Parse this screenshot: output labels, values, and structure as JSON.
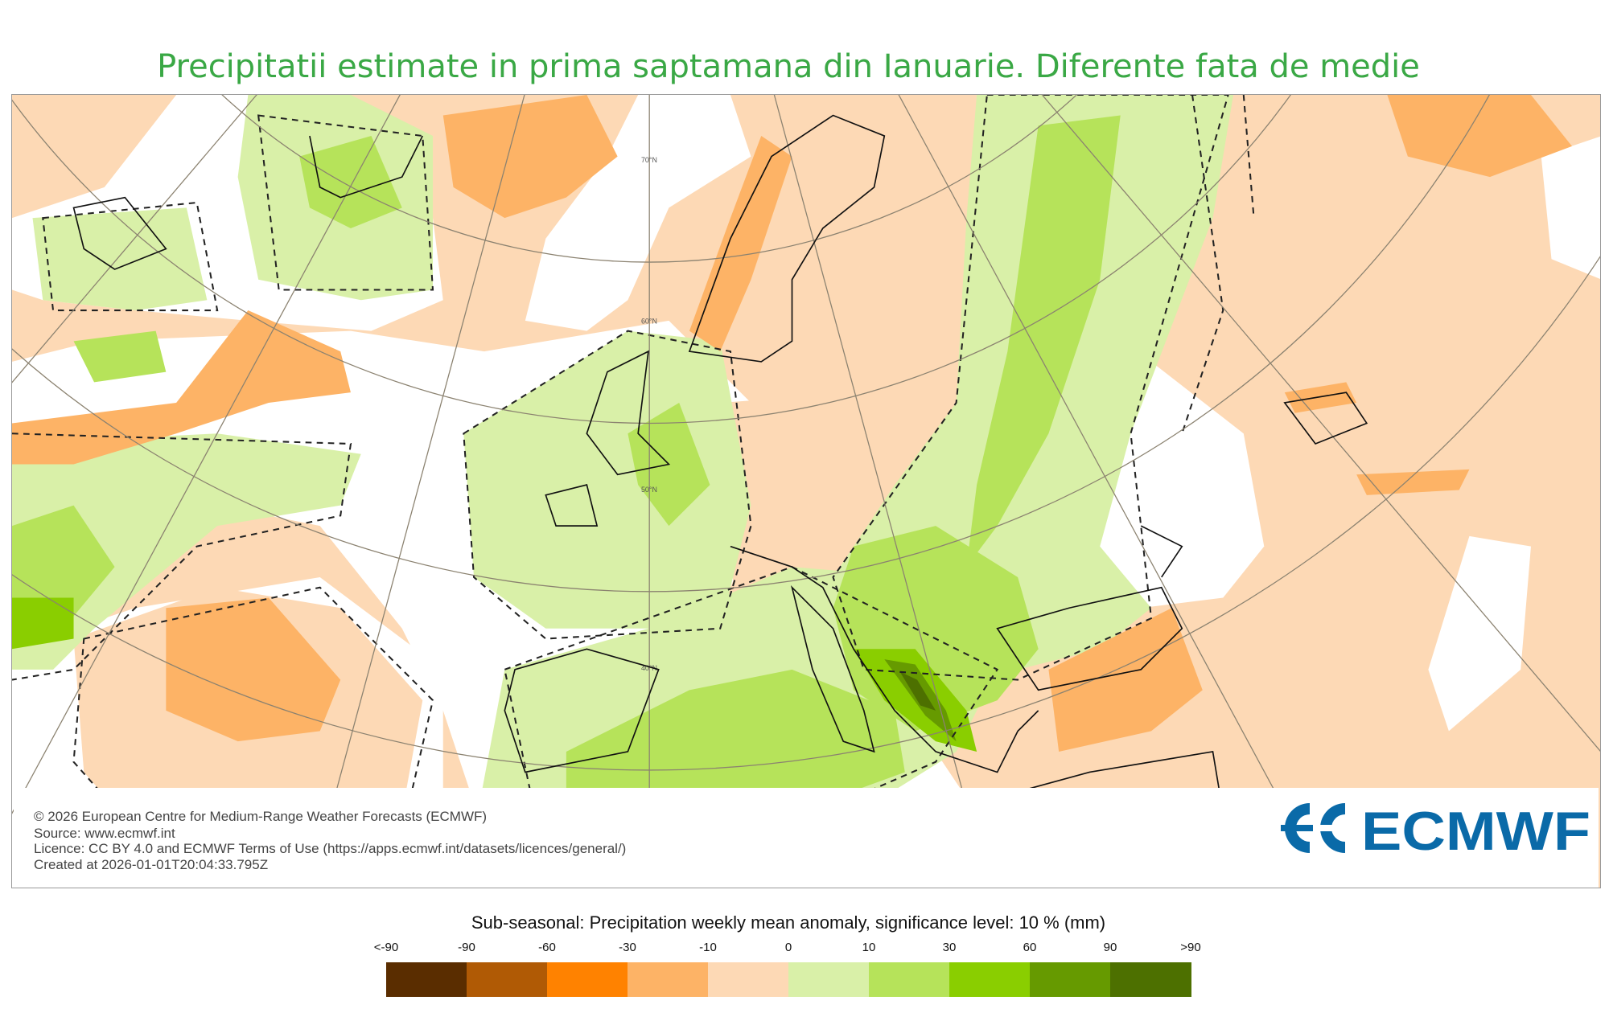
{
  "title": "Precipitatii estimate in prima saptamana din Ianuarie. Diferente fata de medie",
  "map": {
    "latitude_labels": [
      "70°N",
      "60°N",
      "50°N",
      "40°N"
    ],
    "colors": {
      "background_peach": "#fdd9b5",
      "white": "#ffffff",
      "light_green": "#d9f0a8",
      "mid_green": "#b6e35a",
      "green": "#8ace00",
      "dark_green": "#669a00",
      "darkest_green": "#4d7000",
      "light_orange": "#fdb366"
    }
  },
  "credits": {
    "line1": "© 2026 European Centre for Medium-Range Weather Forecasts (ECMWF)",
    "line2": "Source: www.ecmwf.int",
    "line3": "Licence: CC BY 4.0 and ECMWF Terms of Use (https://apps.ecmwf.int/datasets/licences/general/)",
    "line4": "Created at 2026-01-01T20:04:33.795Z",
    "logo_text": "ECMWF",
    "logo_color": "#0a6aa8"
  },
  "legend": {
    "title": "Sub-seasonal: Precipitation weekly mean anomaly, significance level: 10 % (mm)",
    "ticks": [
      "<-90",
      "-90",
      "-60",
      "-30",
      "-10",
      "0",
      "10",
      "30",
      "60",
      "90",
      ">90"
    ],
    "colors": [
      "#5a2d00",
      "#b05a05",
      "#ff8200",
      "#fdb366",
      "#fdd9b5",
      "#d9f0a8",
      "#b6e35a",
      "#8ace00",
      "#669a00",
      "#4d7000"
    ]
  }
}
